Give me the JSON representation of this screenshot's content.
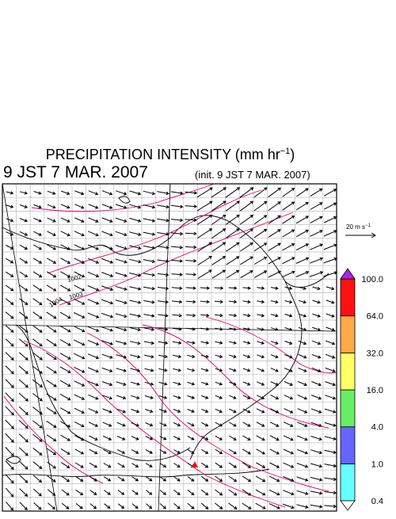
{
  "header": {
    "title_main": "PRECIPITATION INTENSITY (mm hr",
    "title_sup": "−1",
    "title_end": ")",
    "valid_time": "9 JST 7 MAR. 2007",
    "init_time": "(init. 9 JST 7 MAR. 2007)"
  },
  "vector_key": {
    "label_main": "20 m s",
    "label_sup": "−1"
  },
  "isobars": {
    "labels": [
      "1002",
      "1003",
      "1004"
    ]
  },
  "colorbar": {
    "labels": [
      "0.4",
      "1.0",
      "4.0",
      "16.0",
      "32.0",
      "64.0",
      "100.0"
    ],
    "colors": [
      "#66ffff",
      "#6666ff",
      "#66ee66",
      "#ffff66",
      "#ffaa44",
      "#ff1111"
    ],
    "over_color": "#aa22ee",
    "under_color": "#ffffff"
  }
}
